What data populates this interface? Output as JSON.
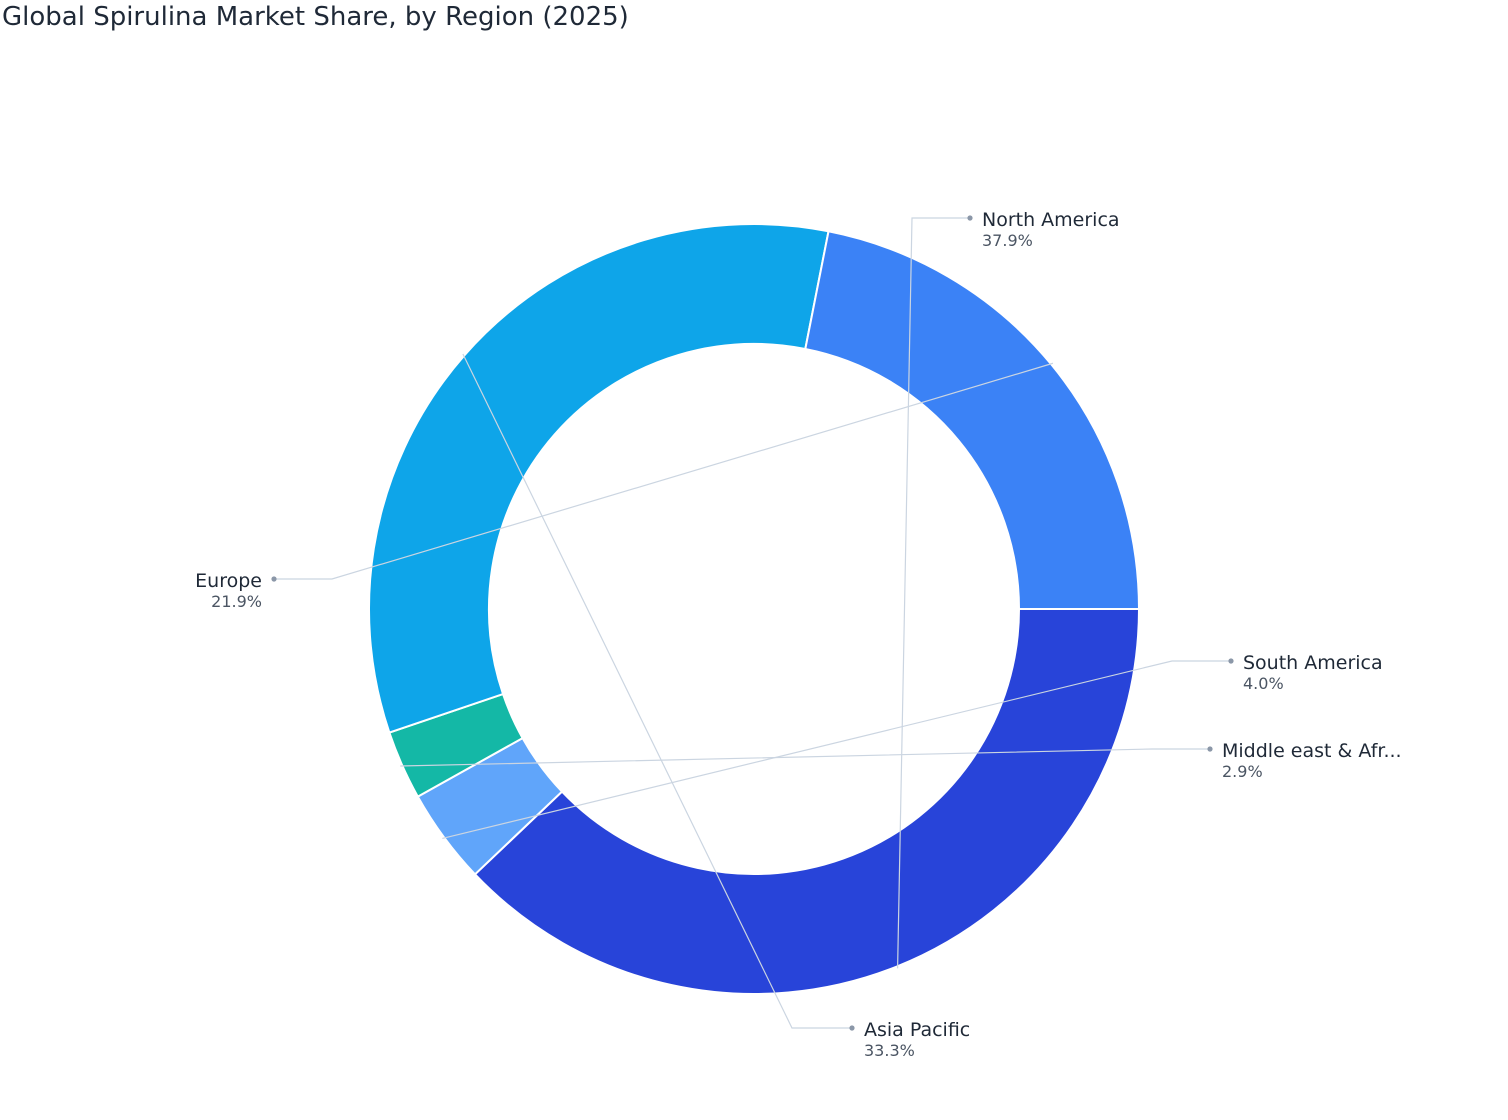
{
  "chart_data": {
    "type": "pie",
    "title": "Global Spirulina Market Share, by Region (2025)",
    "donut": true,
    "unit": "%",
    "slices": [
      {
        "name": "North America",
        "display_name": "North America",
        "value": 37.9,
        "label": "37.9%",
        "color": "#2844d9"
      },
      {
        "name": "South America",
        "display_name": "South America",
        "value": 4.0,
        "label": "4.0%",
        "color": "#60a5fa"
      },
      {
        "name": "Middle east & Africa",
        "display_name": "Middle east & Afr...",
        "value": 2.9,
        "label": "2.9%",
        "color": "#14b8a6"
      },
      {
        "name": "Asia Pacific",
        "display_name": "Asia Pacific",
        "value": 33.3,
        "label": "33.3%",
        "color": "#0ea5e9"
      },
      {
        "name": "Europe",
        "display_name": "Europe",
        "value": 21.9,
        "label": "21.9%",
        "color": "#3b82f6"
      }
    ]
  }
}
